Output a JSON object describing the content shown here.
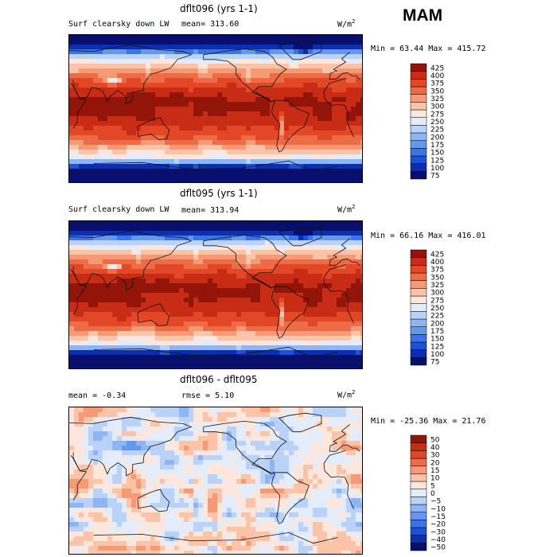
{
  "season": "MAM",
  "panels": [
    {
      "title": "dflt096 (yrs 1-1)",
      "left_label": "Surf clearsky down LW",
      "stat1": "mean= 313.60",
      "stat2": "",
      "units": "W/m",
      "units_sup": "2",
      "minmax": "Min =  63.44 Max = 415.72",
      "kind": "abs"
    },
    {
      "title": "dflt095 (yrs 1-1)",
      "left_label": "Surf clearsky down LW",
      "stat1": "mean= 313.94",
      "stat2": "",
      "units": "W/m",
      "units_sup": "2",
      "minmax": "Min =  66.16 Max = 416.01",
      "kind": "abs"
    },
    {
      "title": "dflt096 - dflt095",
      "left_label": "mean =   -0.34",
      "stat1": "rmse =   5.10",
      "stat2": "",
      "units": "W/m",
      "units_sup": "2",
      "minmax": "Min = -25.36 Max =  21.76",
      "kind": "diff"
    }
  ],
  "chart_data": [
    {
      "type": "heatmap",
      "title": "dflt096 (yrs 1-1)",
      "variable": "Surf clearsky down LW",
      "units": "W/m2",
      "mean": 313.6,
      "min": 63.44,
      "max": 415.72,
      "colorbar_levels": [
        75,
        100,
        125,
        150,
        175,
        200,
        225,
        250,
        275,
        300,
        325,
        350,
        375,
        400,
        425
      ],
      "colorbar_colors": [
        "#08106b",
        "#0c2fb0",
        "#1d52d6",
        "#3a74e6",
        "#6497ee",
        "#8fb6f4",
        "#bad2f8",
        "#e3ecfb",
        "#fde7dc",
        "#fbc4a9",
        "#f69975",
        "#ee6b48",
        "#e24726",
        "#c82c14",
        "#93150a"
      ]
    },
    {
      "type": "heatmap",
      "title": "dflt095 (yrs 1-1)",
      "variable": "Surf clearsky down LW",
      "units": "W/m2",
      "mean": 313.94,
      "min": 66.16,
      "max": 416.01,
      "colorbar_levels": [
        75,
        100,
        125,
        150,
        175,
        200,
        225,
        250,
        275,
        300,
        325,
        350,
        375,
        400,
        425
      ],
      "colorbar_colors": [
        "#08106b",
        "#0c2fb0",
        "#1d52d6",
        "#3a74e6",
        "#6497ee",
        "#8fb6f4",
        "#bad2f8",
        "#e3ecfb",
        "#fde7dc",
        "#fbc4a9",
        "#f69975",
        "#ee6b48",
        "#e24726",
        "#c82c14",
        "#93150a"
      ]
    },
    {
      "type": "heatmap",
      "title": "dflt096 - dflt095",
      "units": "W/m2",
      "mean": -0.34,
      "rmse": 5.1,
      "min": -25.36,
      "max": 21.76,
      "colorbar_levels": [
        -50,
        -40,
        -30,
        -20,
        -15,
        -10,
        -5,
        0,
        5,
        10,
        15,
        20,
        30,
        40,
        50
      ],
      "colorbar_labels": [
        "−50",
        "−40",
        "−30",
        "−20",
        "−15",
        "−10",
        "−5",
        "0",
        "5",
        "10",
        "15",
        "20",
        "30",
        "40",
        "50"
      ],
      "colorbar_colors": [
        "#08106b",
        "#0c2fb0",
        "#1d52d6",
        "#3a74e6",
        "#6497ee",
        "#8fb6f4",
        "#bad2f8",
        "#e3ecfb",
        "#fde7dc",
        "#fbc4a9",
        "#f69975",
        "#ee6b48",
        "#e24726",
        "#c82c14",
        "#93150a"
      ]
    }
  ]
}
